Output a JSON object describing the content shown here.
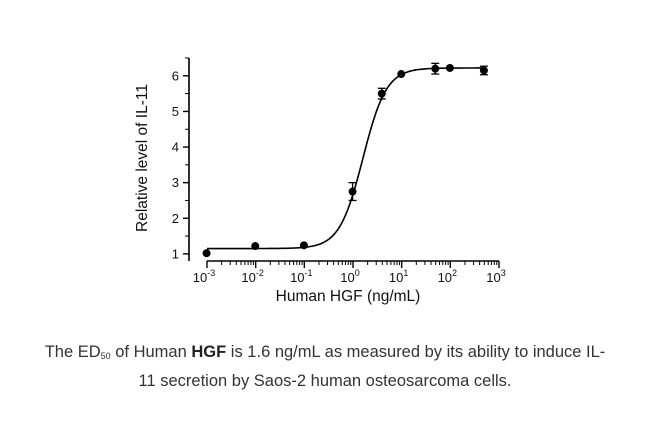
{
  "chart_data": {
    "type": "scatter",
    "xlabel": "Human HGF (ng/mL)",
    "ylabel": "Relative level of IL-11",
    "xscale": "log",
    "xlim": [
      0.001,
      1000
    ],
    "ylim": [
      0.8,
      6.5
    ],
    "x_ticks": [
      {
        "value": 0.001,
        "base": "10",
        "exp": "-3"
      },
      {
        "value": 0.01,
        "base": "10",
        "exp": "-2"
      },
      {
        "value": 0.1,
        "base": "10",
        "exp": "-1"
      },
      {
        "value": 1,
        "base": "10",
        "exp": "0"
      },
      {
        "value": 10,
        "base": "10",
        "exp": "1"
      },
      {
        "value": 100,
        "base": "10",
        "exp": "2"
      },
      {
        "value": 1000,
        "base": "10",
        "exp": "3"
      }
    ],
    "y_ticks": [
      "1",
      "2",
      "3",
      "4",
      "5",
      "6"
    ],
    "grid": false,
    "legend": "none",
    "points": [
      {
        "x": 0.00098,
        "y": 1.02,
        "err": 0.03
      },
      {
        "x": 0.0098,
        "y": 1.22,
        "err": 0.03
      },
      {
        "x": 0.098,
        "y": 1.24,
        "err": 0.04
      },
      {
        "x": 0.98,
        "y": 2.75,
        "err": 0.25
      },
      {
        "x": 3.9,
        "y": 5.5,
        "err": 0.15
      },
      {
        "x": 9.8,
        "y": 6.05,
        "err": 0.05
      },
      {
        "x": 49,
        "y": 6.2,
        "err": 0.15
      },
      {
        "x": 98,
        "y": 6.22,
        "err": 0.04
      },
      {
        "x": 490,
        "y": 6.15,
        "err": 0.12
      }
    ],
    "fit_curve": {
      "bottom": 1.15,
      "top": 6.22,
      "ec50": 1.6,
      "hill": 1.8
    },
    "colors": {
      "marks": "#000000",
      "axis": "#000000"
    }
  },
  "caption": {
    "part1": "The ED",
    "sub": "50",
    "part2": " of Human ",
    "bold": "HGF",
    "part3": " is 1.6 ng/mL as measured by its ability to induce IL-11 secretion by Saos-2 human osteosarcoma cells."
  }
}
